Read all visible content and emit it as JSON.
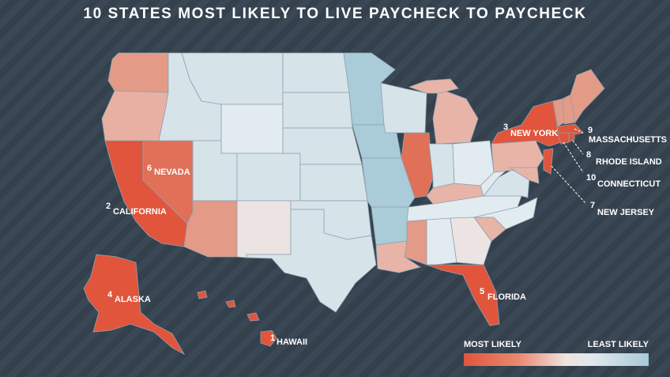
{
  "title": "10 STATES MOST LIKELY TO LIVE PAYCHECK TO PAYCHECK",
  "legend": {
    "most_label": "MOST LIKELY",
    "least_label": "LEAST LIKELY",
    "colors": [
      "#e0553c",
      "#e88a72",
      "#f0e3df",
      "#dfe8ec",
      "#a9cad7"
    ]
  },
  "colors": {
    "background": "#3a4754",
    "top10": "#e0553c",
    "high": "#e88a72",
    "mid": "#e8b4a8",
    "neutral": "#ece4e2",
    "low": "#d6e3e9",
    "lowest": "#aacbd8"
  },
  "rankings": [
    {
      "rank": "1",
      "state": "HAWAII"
    },
    {
      "rank": "2",
      "state": "CALIFORNIA"
    },
    {
      "rank": "3",
      "state": "NEW YORK"
    },
    {
      "rank": "4",
      "state": "ALASKA"
    },
    {
      "rank": "5",
      "state": "FLORIDA"
    },
    {
      "rank": "6",
      "state": "NEVADA"
    },
    {
      "rank": "7",
      "state": "NEW JERSEY"
    },
    {
      "rank": "8",
      "state": "RHODE ISLAND"
    },
    {
      "rank": "9",
      "state": "MASSACHUSETTS"
    },
    {
      "rank": "10",
      "state": "CONNECTICUT"
    }
  ]
}
